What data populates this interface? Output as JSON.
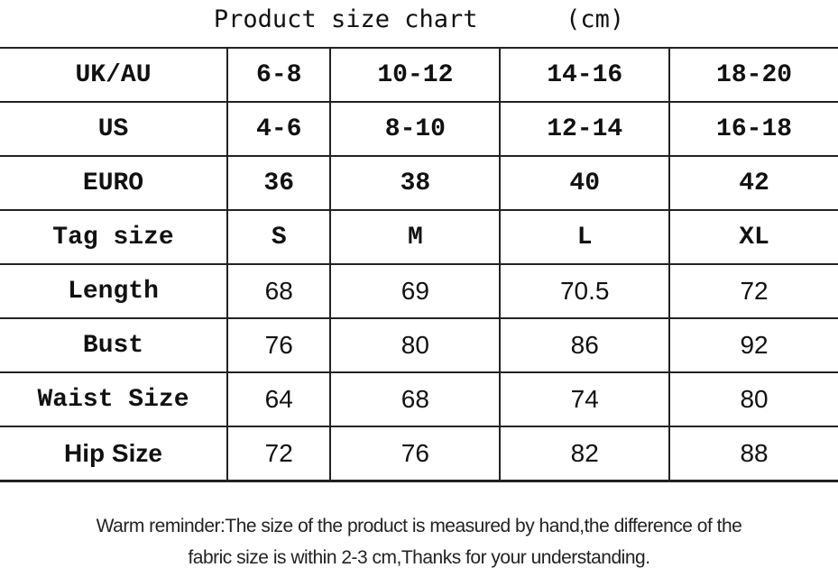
{
  "title": "Product size chart",
  "unit": "(cm)",
  "rows": [
    {
      "label": "UK/AU",
      "values": [
        "6-8",
        "10-12",
        "14-16",
        "18-20"
      ]
    },
    {
      "label": "US",
      "values": [
        "4-6",
        "8-10",
        "12-14",
        "16-18"
      ]
    },
    {
      "label": "EURO",
      "values": [
        "36",
        "38",
        "40",
        "42"
      ]
    },
    {
      "label": "Tag size",
      "values": [
        "S",
        "M",
        "L",
        "XL"
      ]
    },
    {
      "label": "Length",
      "values": [
        "68",
        "69",
        "70.5",
        "72"
      ]
    },
    {
      "label": "Bust",
      "values": [
        "76",
        "80",
        "86",
        "92"
      ]
    },
    {
      "label": "Waist Size",
      "values": [
        "64",
        "68",
        "74",
        "80"
      ]
    },
    {
      "label": "Hip Size",
      "values": [
        "72",
        "76",
        "82",
        "88"
      ]
    }
  ],
  "note": {
    "line1": "Warm reminder:The size of the product is measured by hand,the difference of the",
    "line2": "fabric size is within 2-3 cm,Thanks for your understanding."
  }
}
